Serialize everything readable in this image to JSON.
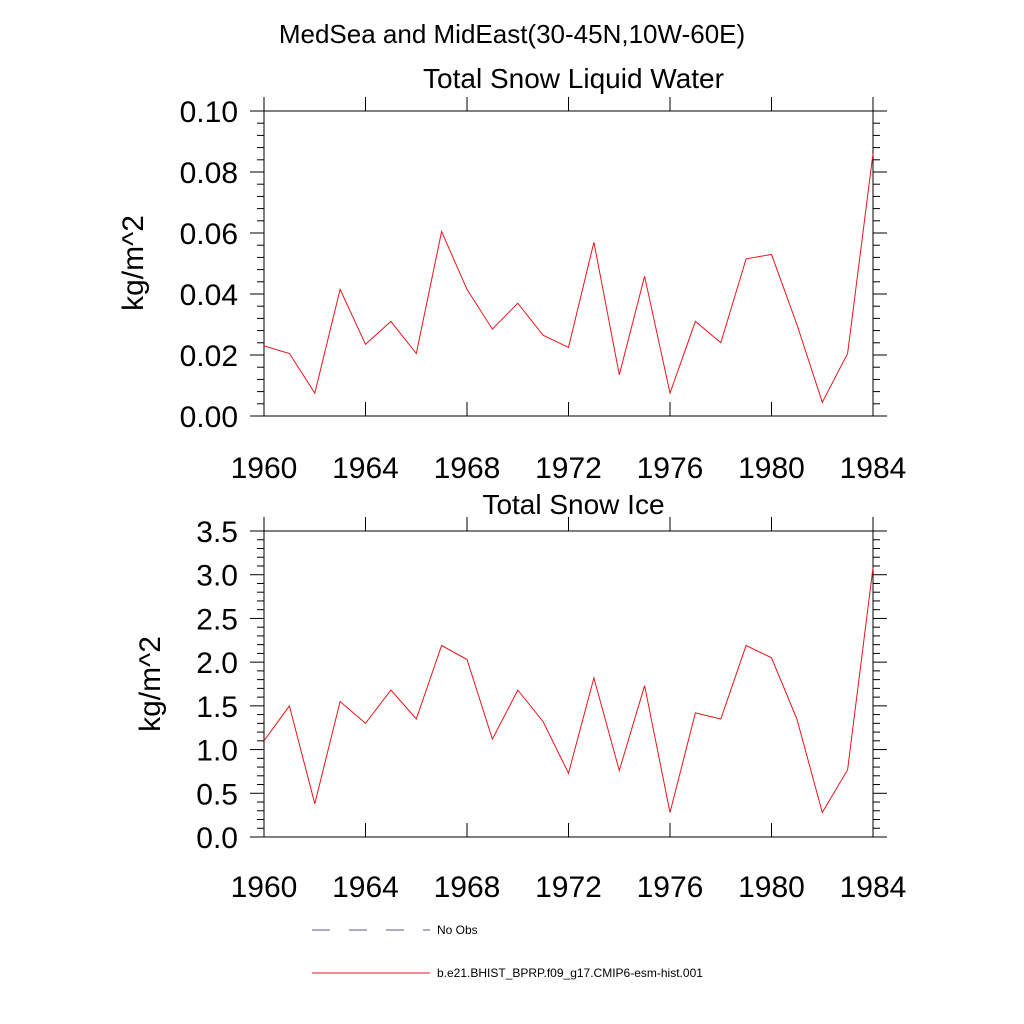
{
  "figure_title": "MedSea and MidEast(30-45N,10W-60E)",
  "legend": [
    {
      "label": "No Obs",
      "color": "#5a5a8c",
      "dash": "dashed"
    },
    {
      "label": "b.e21.BHIST_BPRP.f09_g17.CMIP6-esm-hist.001",
      "color": "#e8141c",
      "dash": "solid"
    }
  ],
  "chart_data": [
    {
      "type": "line",
      "title": "Total Snow Liquid Water",
      "xlabel": "",
      "ylabel": "kg/m^2",
      "xlim": [
        1960,
        1984
      ],
      "ylim": [
        0.0,
        0.1
      ],
      "xticks": [
        "1960",
        "1964",
        "1968",
        "1972",
        "1976",
        "1980",
        "1984"
      ],
      "yticks": [
        "0.00",
        "0.02",
        "0.04",
        "0.06",
        "0.08",
        "0.10"
      ],
      "grid": false,
      "x": [
        1960,
        1961,
        1962,
        1963,
        1964,
        1965,
        1966,
        1967,
        1968,
        1969,
        1970,
        1971,
        1972,
        1973,
        1974,
        1975,
        1976,
        1977,
        1978,
        1979,
        1980,
        1981,
        1982,
        1983,
        1984
      ],
      "series": [
        {
          "name": "b.e21.BHIST_BPRP.f09_g17.CMIP6-esm-hist.001",
          "color": "#e8141c",
          "values": [
            0.023,
            0.0205,
            0.0075,
            0.0415,
            0.0235,
            0.031,
            0.0205,
            0.0605,
            0.0415,
            0.0285,
            0.037,
            0.0265,
            0.0225,
            0.057,
            0.0135,
            0.0458,
            0.0075,
            0.031,
            0.024,
            0.0515,
            0.053,
            0.03,
            0.0045,
            0.0205,
            0.086
          ]
        }
      ]
    },
    {
      "type": "line",
      "title": "Total Snow Ice",
      "xlabel": "",
      "ylabel": "kg/m^2",
      "xlim": [
        1960,
        1984
      ],
      "ylim": [
        0.0,
        3.5
      ],
      "xticks": [
        "1960",
        "1964",
        "1968",
        "1972",
        "1976",
        "1980",
        "1984"
      ],
      "yticks": [
        "0.0",
        "0.5",
        "1.0",
        "1.5",
        "2.0",
        "2.5",
        "3.0",
        "3.5"
      ],
      "grid": false,
      "x": [
        1960,
        1961,
        1962,
        1963,
        1964,
        1965,
        1966,
        1967,
        1968,
        1969,
        1970,
        1971,
        1972,
        1973,
        1974,
        1975,
        1976,
        1977,
        1978,
        1979,
        1980,
        1981,
        1982,
        1983,
        1984
      ],
      "series": [
        {
          "name": "b.e21.BHIST_BPRP.f09_g17.CMIP6-esm-hist.001",
          "color": "#e8141c",
          "values": [
            1.1,
            1.5,
            0.38,
            1.55,
            1.3,
            1.68,
            1.35,
            2.19,
            2.03,
            1.12,
            1.68,
            1.32,
            0.73,
            1.82,
            0.76,
            1.73,
            0.28,
            1.42,
            1.35,
            2.19,
            2.05,
            1.35,
            0.28,
            0.77,
            3.08
          ]
        }
      ]
    }
  ]
}
